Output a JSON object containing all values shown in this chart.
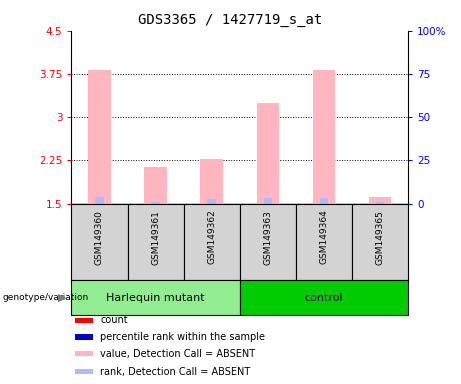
{
  "title": "GDS3365 / 1427719_s_at",
  "samples": [
    "GSM149360",
    "GSM149361",
    "GSM149362",
    "GSM149363",
    "GSM149364",
    "GSM149365"
  ],
  "value_bars": [
    3.82,
    2.14,
    2.28,
    3.25,
    3.82,
    1.62
  ],
  "rank_bars": [
    1.62,
    1.52,
    1.57,
    1.6,
    1.59,
    1.53
  ],
  "ylim_left": [
    1.5,
    4.5
  ],
  "ylim_right": [
    0,
    100
  ],
  "yticks_left": [
    1.5,
    2.25,
    3.0,
    3.75,
    4.5
  ],
  "yticks_right": [
    0,
    25,
    50,
    75,
    100
  ],
  "ytick_labels_left": [
    "1.5",
    "2.25",
    "3",
    "3.75",
    "4.5"
  ],
  "ytick_labels_right": [
    "0",
    "25",
    "50",
    "75",
    "100%"
  ],
  "bar_color_value": "#FFB6C1",
  "bar_color_rank": "#B0B8FF",
  "harlequin_color": "#90EE90",
  "control_color": "#00CC00",
  "legend_items": [
    {
      "color": "#FF0000",
      "label": "count"
    },
    {
      "color": "#0000CC",
      "label": "percentile rank within the sample"
    },
    {
      "color": "#FFB6C1",
      "label": "value, Detection Call = ABSENT"
    },
    {
      "color": "#B0B8FF",
      "label": "rank, Detection Call = ABSENT"
    }
  ],
  "sample_box_color": "#D3D3D3",
  "bar_width": 0.4,
  "rank_bar_width": 0.15
}
